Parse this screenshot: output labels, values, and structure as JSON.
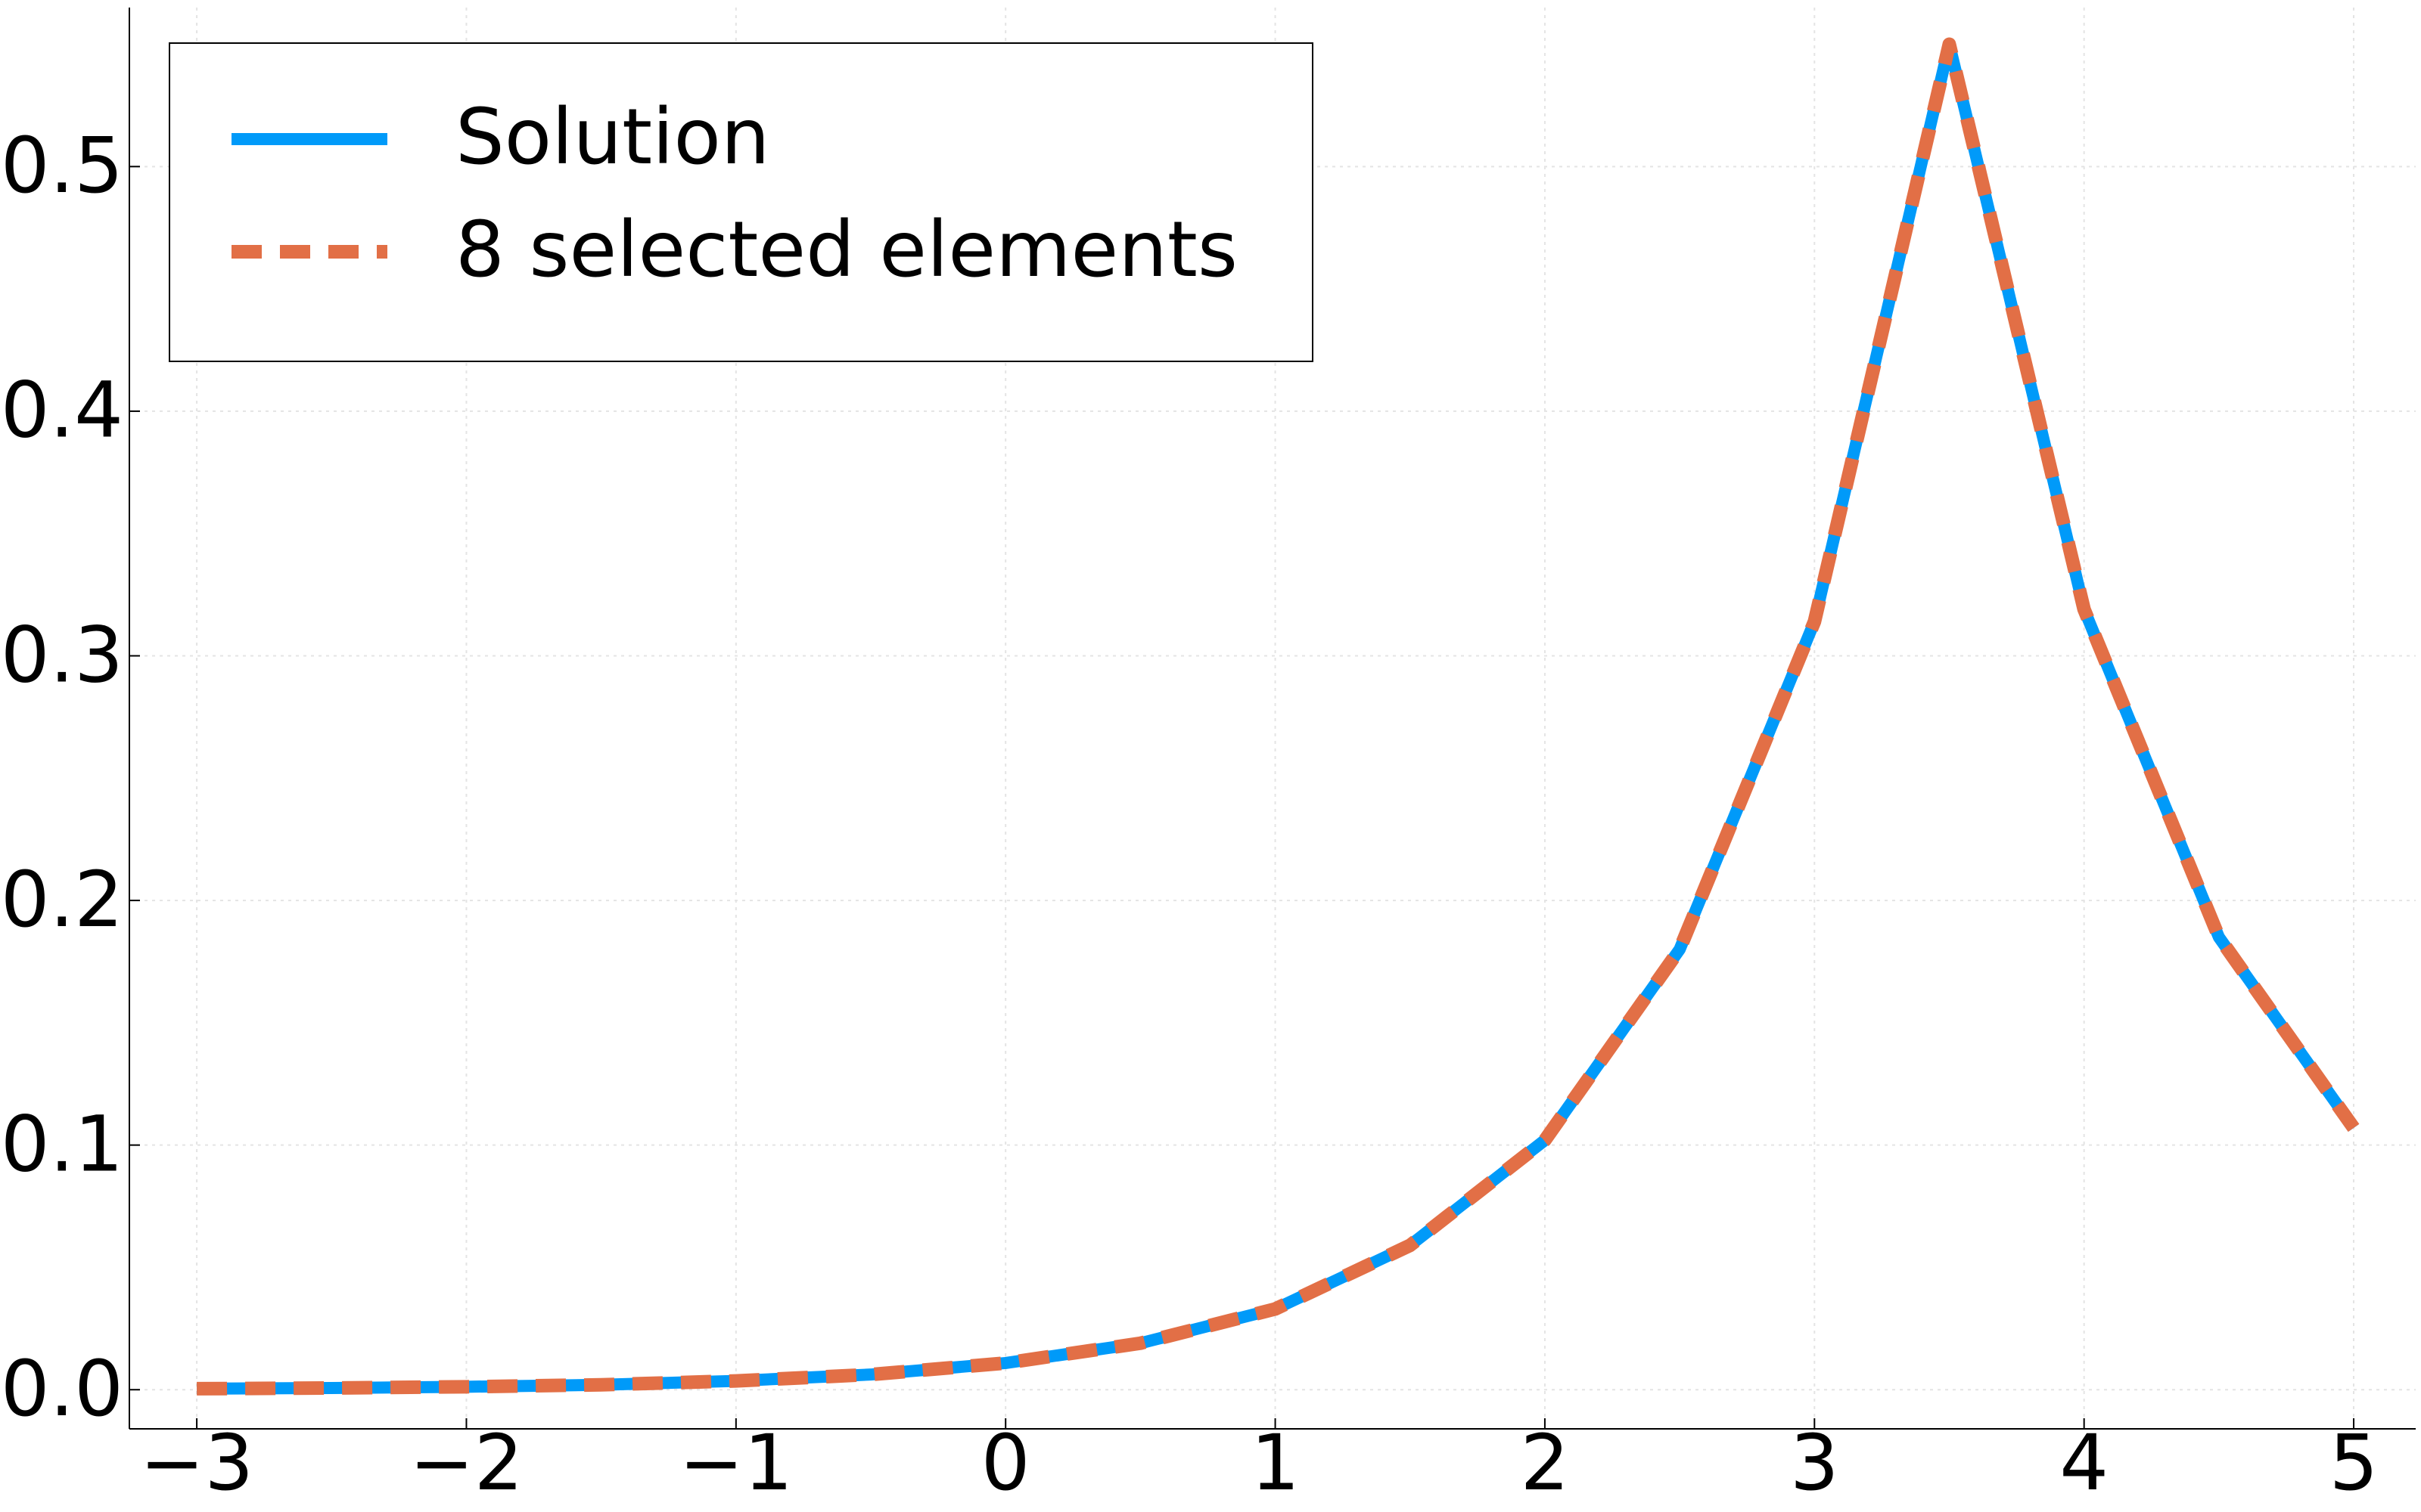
{
  "chart_data": {
    "type": "line",
    "x": [
      -3,
      -2.5,
      -2,
      -1.5,
      -1,
      -0.5,
      0,
      0.5,
      1,
      1.5,
      2,
      2.5,
      3,
      3.5,
      4,
      4.5,
      5
    ],
    "series": [
      {
        "name": "Solution",
        "color": "#009af9",
        "dash": false,
        "values": [
          0.0004,
          0.0007,
          0.0012,
          0.002,
          0.0036,
          0.0062,
          0.0109,
          0.019,
          0.033,
          0.059,
          0.102,
          0.18,
          0.314,
          0.55,
          0.319,
          0.185,
          0.107
        ]
      },
      {
        "name": "8 selected elements",
        "color": "#e26f46",
        "dash": true,
        "values": [
          0.0004,
          0.0007,
          0.0012,
          0.002,
          0.0036,
          0.0062,
          0.0109,
          0.019,
          0.033,
          0.059,
          0.102,
          0.18,
          0.314,
          0.55,
          0.319,
          0.185,
          0.107
        ]
      }
    ],
    "xlim": [
      -3.25,
      5.23
    ],
    "ylim": [
      -0.016,
      0.565
    ],
    "xticks": [
      {
        "value": -3,
        "label": "−3"
      },
      {
        "value": -2,
        "label": "−2"
      },
      {
        "value": -1,
        "label": "−1"
      },
      0,
      1,
      2,
      3,
      4,
      5
    ],
    "yticks": [
      {
        "value": 0,
        "label": "0.0"
      },
      0.1,
      0.2,
      0.3,
      0.4,
      0.5
    ],
    "grid": true,
    "legend": "top-left"
  }
}
